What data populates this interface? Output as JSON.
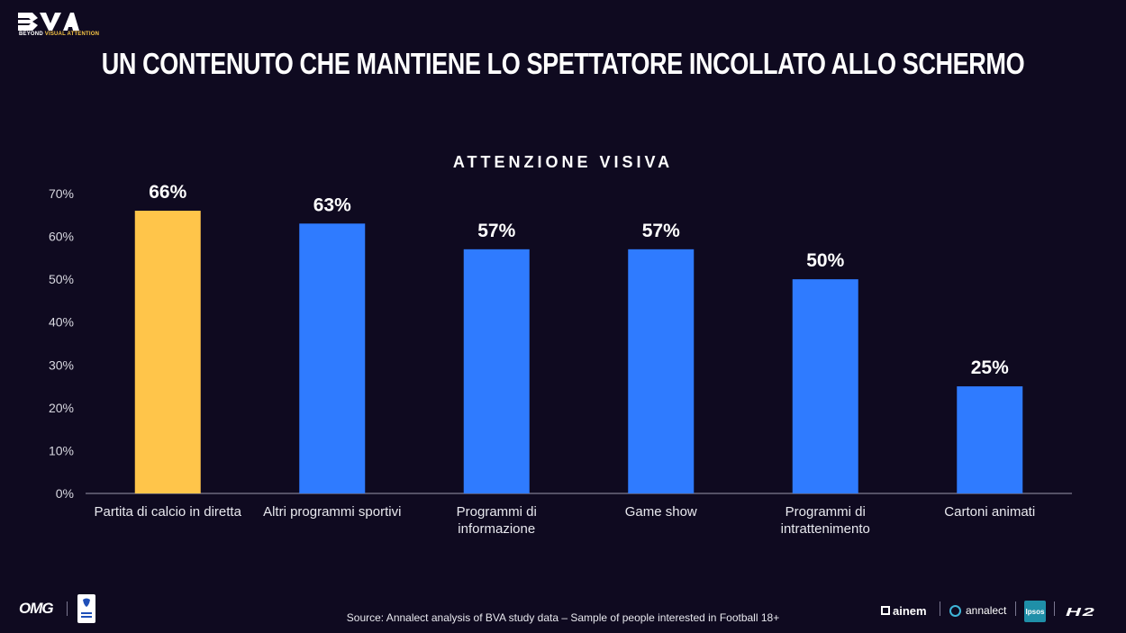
{
  "brand": {
    "logo_icon": "bva-logo-icon",
    "tag_prefix": "BEYOND ",
    "tag_accent": "VISUAL ATTENTION",
    "accent_color": "#f7c544"
  },
  "page_title": "UN CONTENUTO CHE MANTIENE LO SPETTATORE INCOLLATO ALLO SCHERMO",
  "chart_data": {
    "type": "bar",
    "title": "ATTENZIONE VISIVA",
    "categories": [
      "Partita di calcio in diretta",
      "Altri programmi sportivi",
      "Programmi di informazione",
      "Game show",
      "Programmi di intrattenimento",
      "Cartoni animati"
    ],
    "category_lines": [
      [
        "Partita di calcio in diretta"
      ],
      [
        "Altri programmi sportivi"
      ],
      [
        "Programmi di",
        "informazione"
      ],
      [
        "Game show"
      ],
      [
        "Programmi di",
        "intrattenimento"
      ],
      [
        "Cartoni animati"
      ]
    ],
    "values": [
      66,
      63,
      57,
      57,
      50,
      25
    ],
    "value_labels": [
      "66%",
      "63%",
      "57%",
      "57%",
      "50%",
      "25%"
    ],
    "yticks": [
      "0%",
      "10%",
      "20%",
      "30%",
      "40%",
      "50%",
      "60%",
      "70%"
    ],
    "ylim": [
      0,
      70
    ],
    "grid": false,
    "colors": [
      "#ffc54a",
      "#2f7bff",
      "#2f7bff",
      "#2f7bff",
      "#2f7bff",
      "#2f7bff"
    ]
  },
  "footer": {
    "source": "Source: Annalect analysis of BVA study data – Sample of people interested in Football 18+",
    "omg": "OMG",
    "seriea_icon": "serie-a-logo-icon",
    "ainem": "ainem",
    "annalect": "annalect",
    "ipsos": "Ipsos",
    "h2": "H2"
  }
}
